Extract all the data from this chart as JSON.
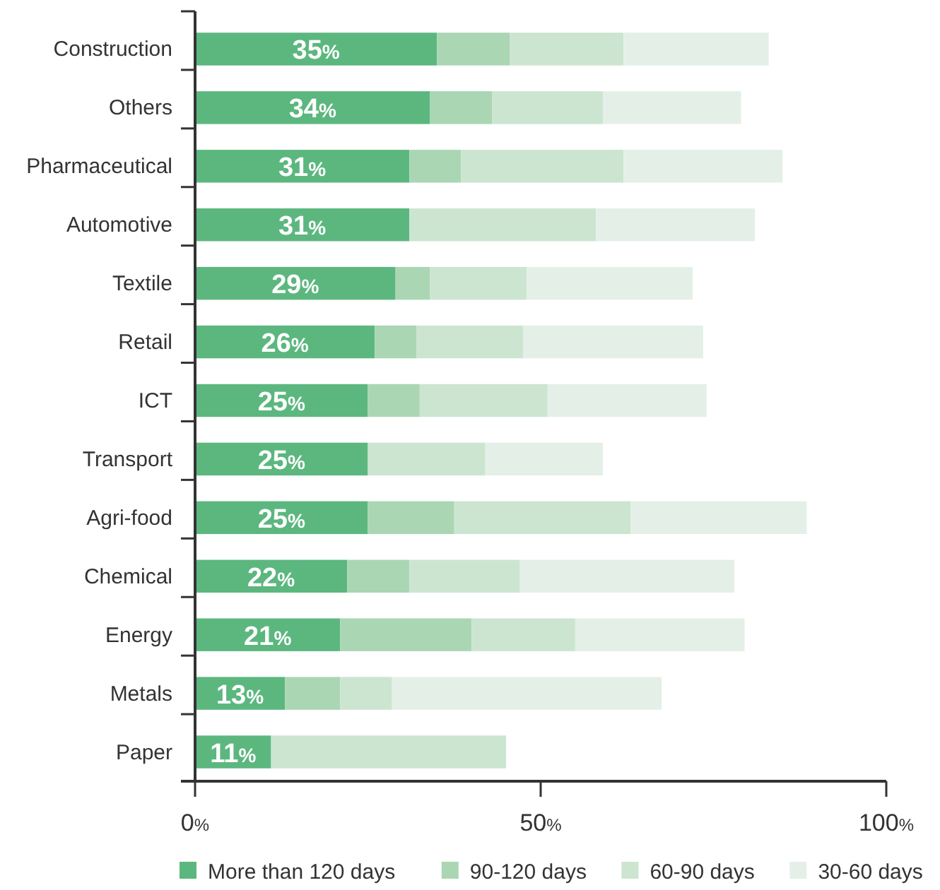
{
  "chart_data": {
    "type": "bar",
    "orientation": "horizontal",
    "stacked": true,
    "legend": "bottom",
    "categories": [
      "Construction",
      "Others",
      "Pharmaceutical",
      "Automotive",
      "Textile",
      "Retail",
      "ICT",
      "Transport",
      "Agri-food",
      "Chemical",
      "Energy",
      "Metals",
      "Paper"
    ],
    "xlim": [
      0,
      100
    ],
    "xticks": [
      {
        "value": 0,
        "label": "0%"
      },
      {
        "value": 50,
        "label": "50%"
      },
      {
        "value": 100,
        "label": "100%"
      }
    ],
    "series": [
      {
        "name": "More than 120 days",
        "color": "#5cb77f",
        "values": [
          35,
          34,
          31,
          31,
          29,
          26,
          25,
          25,
          25,
          22,
          21,
          13,
          11
        ],
        "value_labels": [
          "35%",
          "34%",
          "31%",
          "31%",
          "29%",
          "26%",
          "25%",
          "25%",
          "25%",
          "22%",
          "21%",
          "13%",
          "11%"
        ]
      },
      {
        "name": "90-120 days",
        "color": "#aad6b4",
        "values": [
          10.5,
          9,
          7.5,
          0,
          5,
          6,
          7.5,
          0,
          12.5,
          9,
          19,
          8,
          0
        ]
      },
      {
        "name": "60-90 days",
        "color": "#cce5d1",
        "values": [
          16.5,
          16,
          23.5,
          27,
          14,
          15.5,
          18.5,
          17,
          25.5,
          16,
          15,
          7.5,
          34
        ]
      },
      {
        "name": "30-60 days",
        "color": "#e4f0e7",
        "values": [
          21,
          20,
          23,
          23,
          24,
          26,
          23,
          17,
          25.5,
          31,
          24.5,
          39,
          0
        ]
      }
    ]
  }
}
